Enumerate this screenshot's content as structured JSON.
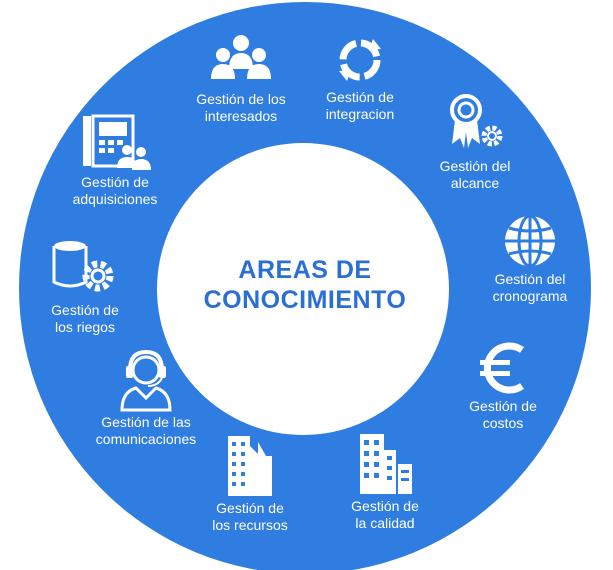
{
  "center": {
    "line1": "AREAS DE",
    "line2": "CONOCIMIENTO"
  },
  "colors": {
    "ring": "#2f7de1",
    "center_fill": "#ffffff",
    "center_text": "#2b6fd4",
    "icon": "#ffffff"
  },
  "areas": [
    {
      "line1": "Gestión de los",
      "line2": "interesados",
      "icon": "people-icon"
    },
    {
      "line1": "Gestión de",
      "line2": "integracion",
      "icon": "cycle-arrows-icon"
    },
    {
      "line1": "Gestión del",
      "line2": "alcance",
      "icon": "award-gear-icon"
    },
    {
      "line1": "Gestión del",
      "line2": "cronograma",
      "icon": "globe-icon"
    },
    {
      "line1": "Gestión de",
      "line2": "costos",
      "icon": "euro-icon"
    },
    {
      "line1": "Gestión de",
      "line2": "la calidad",
      "icon": "buildings-icon"
    },
    {
      "line1": "Gestión de",
      "line2": "los recursos",
      "icon": "skyscraper-icon"
    },
    {
      "line1": "Gestión de las",
      "line2": "comunicaciones",
      "icon": "headset-person-icon"
    },
    {
      "line1": "Gestión de",
      "line2": "los riegos",
      "icon": "database-gear-icon"
    },
    {
      "line1": "Gestión de",
      "line2": "adquisiciones",
      "icon": "phone-people-icon"
    }
  ]
}
